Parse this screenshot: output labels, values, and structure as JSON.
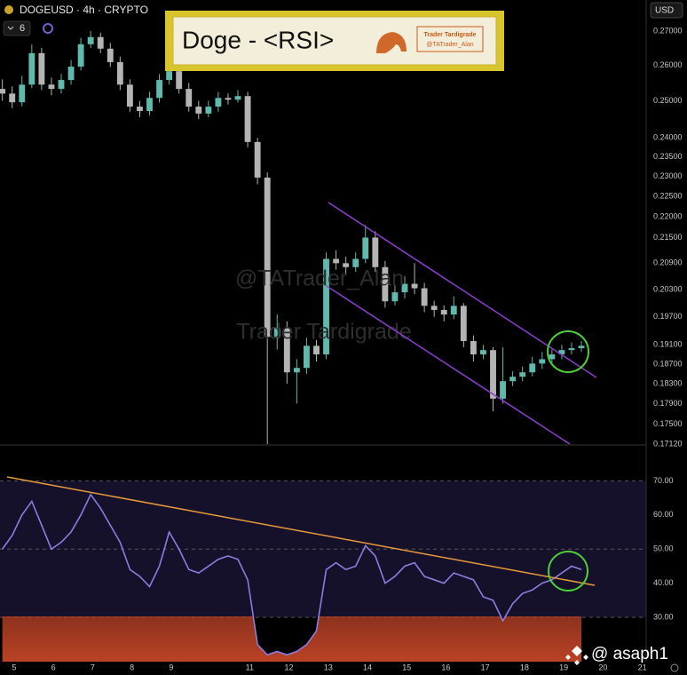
{
  "header": {
    "symbol": "DOGEUSD · 4h · CRYPTO",
    "interval_count": "6",
    "currency": "USD"
  },
  "banner": {
    "title": "Doge - <RSI>",
    "brand": "Trader Tardigrade",
    "handle": "@TATrader_Alan"
  },
  "watermark": {
    "handle": "@TATrader_Alan",
    "brand": "Trader Tardigrade",
    "credit": "@ asaph1"
  },
  "chart_data": [
    {
      "type": "candlestick",
      "log": true,
      "grid": false,
      "up_color": "#5fb9ad",
      "down_color": "#b4b4b4",
      "x": [
        4.7,
        4.95,
        5.2,
        5.45,
        5.7,
        5.95,
        6.2,
        6.45,
        6.7,
        6.95,
        7.2,
        7.45,
        7.7,
        7.95,
        8.2,
        8.45,
        8.7,
        8.95,
        9.2,
        9.45,
        9.7,
        9.95,
        10.2,
        10.45,
        10.7,
        10.95,
        11.2,
        11.45,
        11.7,
        11.95,
        12.2,
        12.45,
        12.7,
        12.95,
        13.2,
        13.45,
        13.7,
        13.95,
        14.2,
        14.45,
        14.7,
        14.95,
        15.2,
        15.45,
        15.7,
        15.95,
        16.2,
        16.45,
        16.7,
        16.95,
        17.2,
        17.45,
        17.7,
        17.95,
        18.2,
        18.45,
        18.7,
        18.95,
        19.2,
        19.45
      ],
      "open": [
        0.2533,
        0.252,
        0.2496,
        0.2545,
        0.2635,
        0.2545,
        0.2533,
        0.2558,
        0.2596,
        0.2661,
        0.2682,
        0.2648,
        0.2609,
        0.2545,
        0.2484,
        0.2472,
        0.2508,
        0.2558,
        0.2583,
        0.2533,
        0.2484,
        0.2465,
        0.2484,
        0.2508,
        0.2503,
        0.2513,
        0.2389,
        0.2297,
        0.1927,
        0.1946,
        0.1853,
        0.1862,
        0.1908,
        0.189,
        0.21,
        0.209,
        0.2081,
        0.21,
        0.215,
        0.2081,
        0.2004,
        0.2024,
        0.2043,
        0.2033,
        0.1994,
        0.1985,
        0.1975,
        0.1994,
        0.1918,
        0.189,
        0.1899,
        0.18,
        0.1835,
        0.1844,
        0.1853,
        0.1871,
        0.188,
        0.189,
        0.1899,
        0.1903
      ],
      "high": [
        0.256,
        0.254,
        0.257,
        0.266,
        0.265,
        0.2565,
        0.2575,
        0.2615,
        0.268,
        0.27,
        0.2695,
        0.2665,
        0.2625,
        0.256,
        0.25,
        0.2525,
        0.2575,
        0.26,
        0.2595,
        0.255,
        0.25,
        0.25,
        0.2525,
        0.252,
        0.253,
        0.2525,
        0.24,
        0.231,
        0.1975,
        0.196,
        0.188,
        0.1925,
        0.192,
        0.2115,
        0.212,
        0.2105,
        0.2115,
        0.218,
        0.2165,
        0.2095,
        0.204,
        0.206,
        0.209,
        0.2045,
        0.2005,
        0.1995,
        0.2015,
        0.2,
        0.193,
        0.191,
        0.1905,
        0.1905,
        0.1855,
        0.1865,
        0.1885,
        0.1895,
        0.19,
        0.191,
        0.1915,
        0.1918
      ],
      "low": [
        0.25,
        0.248,
        0.2485,
        0.2535,
        0.253,
        0.2515,
        0.252,
        0.2545,
        0.2585,
        0.265,
        0.2635,
        0.2595,
        0.253,
        0.247,
        0.2455,
        0.246,
        0.2495,
        0.2545,
        0.252,
        0.247,
        0.245,
        0.2455,
        0.247,
        0.249,
        0.2495,
        0.2375,
        0.228,
        0.1712,
        0.19,
        0.183,
        0.179,
        0.185,
        0.1875,
        0.188,
        0.2075,
        0.2065,
        0.207,
        0.209,
        0.207,
        0.199,
        0.1995,
        0.201,
        0.202,
        0.198,
        0.197,
        0.196,
        0.1965,
        0.1905,
        0.1875,
        0.188,
        0.1775,
        0.179,
        0.1825,
        0.1835,
        0.1845,
        0.186,
        0.187,
        0.188,
        0.189,
        0.1895
      ],
      "close": [
        0.252,
        0.2496,
        0.2545,
        0.2635,
        0.2545,
        0.2533,
        0.2558,
        0.2596,
        0.2661,
        0.2682,
        0.2648,
        0.2609,
        0.2545,
        0.2484,
        0.2472,
        0.2508,
        0.2558,
        0.2583,
        0.2533,
        0.2484,
        0.2465,
        0.2484,
        0.2508,
        0.2503,
        0.2513,
        0.2389,
        0.2297,
        0.1927,
        0.1946,
        0.1853,
        0.1862,
        0.1908,
        0.189,
        0.21,
        0.209,
        0.2081,
        0.21,
        0.215,
        0.2081,
        0.2004,
        0.2024,
        0.2043,
        0.2033,
        0.1994,
        0.1985,
        0.1975,
        0.1994,
        0.1918,
        0.189,
        0.1899,
        0.18,
        0.1835,
        0.1844,
        0.1853,
        0.1871,
        0.188,
        0.189,
        0.1899,
        0.1903,
        0.1908
      ],
      "xlim": [
        4.64,
        21.1
      ],
      "ylim": [
        0.1712,
        0.2794
      ],
      "yticks": [
        {
          "value": 0.27,
          "label": "0.27000"
        },
        {
          "value": 0.26,
          "label": "0.26000"
        },
        {
          "value": 0.25,
          "label": "0.25000"
        },
        {
          "value": 0.24,
          "label": "0.24000"
        },
        {
          "value": 0.235,
          "label": "0.23500"
        },
        {
          "value": 0.23,
          "label": "0.23000"
        },
        {
          "value": 0.225,
          "label": "0.22500"
        },
        {
          "value": 0.22,
          "label": "0.22000"
        },
        {
          "value": 0.215,
          "label": "0.21500"
        },
        {
          "value": 0.209,
          "label": "0.20900"
        },
        {
          "value": 0.203,
          "label": "0.20300"
        },
        {
          "value": 0.197,
          "label": "0.19700"
        },
        {
          "value": 0.191,
          "label": "0.19100"
        },
        {
          "value": 0.187,
          "label": "0.18700"
        },
        {
          "value": 0.183,
          "label": "0.18300"
        },
        {
          "value": 0.179,
          "label": "0.17900"
        },
        {
          "value": 0.175,
          "label": "0.17500"
        },
        {
          "value": 0.1712,
          "label": "0.17120"
        }
      ]
    },
    {
      "type": "line",
      "color": "#8e7ce0",
      "oversold_color": "#b0402a",
      "band_color": "#15112a",
      "x": [
        4.7,
        4.95,
        5.2,
        5.45,
        5.7,
        5.95,
        6.2,
        6.45,
        6.7,
        6.95,
        7.2,
        7.45,
        7.7,
        7.95,
        8.2,
        8.45,
        8.7,
        8.95,
        9.2,
        9.45,
        9.7,
        9.95,
        10.2,
        10.45,
        10.7,
        10.95,
        11.2,
        11.45,
        11.7,
        11.95,
        12.2,
        12.45,
        12.7,
        12.95,
        13.2,
        13.45,
        13.7,
        13.95,
        14.2,
        14.45,
        14.7,
        14.95,
        15.2,
        15.45,
        15.7,
        15.95,
        16.2,
        16.45,
        16.7,
        16.95,
        17.2,
        17.45,
        17.7,
        17.95,
        18.2,
        18.45,
        18.7,
        18.95,
        19.2,
        19.45
      ],
      "values": [
        50,
        54,
        60,
        64,
        57,
        50,
        52,
        55,
        60,
        66,
        62,
        57,
        52,
        44,
        42,
        39,
        45,
        55,
        50,
        44,
        43,
        45,
        47,
        48,
        47,
        41,
        22,
        19,
        20,
        19,
        20,
        22,
        26,
        44,
        46,
        44,
        45,
        51,
        48,
        40,
        42,
        45,
        46,
        42,
        41,
        40,
        43,
        42,
        41,
        36,
        35,
        29,
        34,
        37,
        38,
        40,
        41,
        43,
        45,
        44
      ],
      "levels": [
        30,
        50,
        70
      ],
      "xlim": [
        4.64,
        21.1
      ],
      "ylim": [
        17,
        80
      ],
      "xticks": [
        5,
        6,
        7,
        8,
        9,
        11,
        12,
        13,
        14,
        15,
        16,
        17,
        18,
        19,
        20,
        21
      ],
      "yticks": [
        {
          "value": 70,
          "label": "70.00"
        },
        {
          "value": 60,
          "label": "60.00"
        },
        {
          "value": 50,
          "label": "50.00"
        },
        {
          "value": 40,
          "label": "40.00"
        },
        {
          "value": 30,
          "label": "30.00"
        }
      ]
    }
  ]
}
